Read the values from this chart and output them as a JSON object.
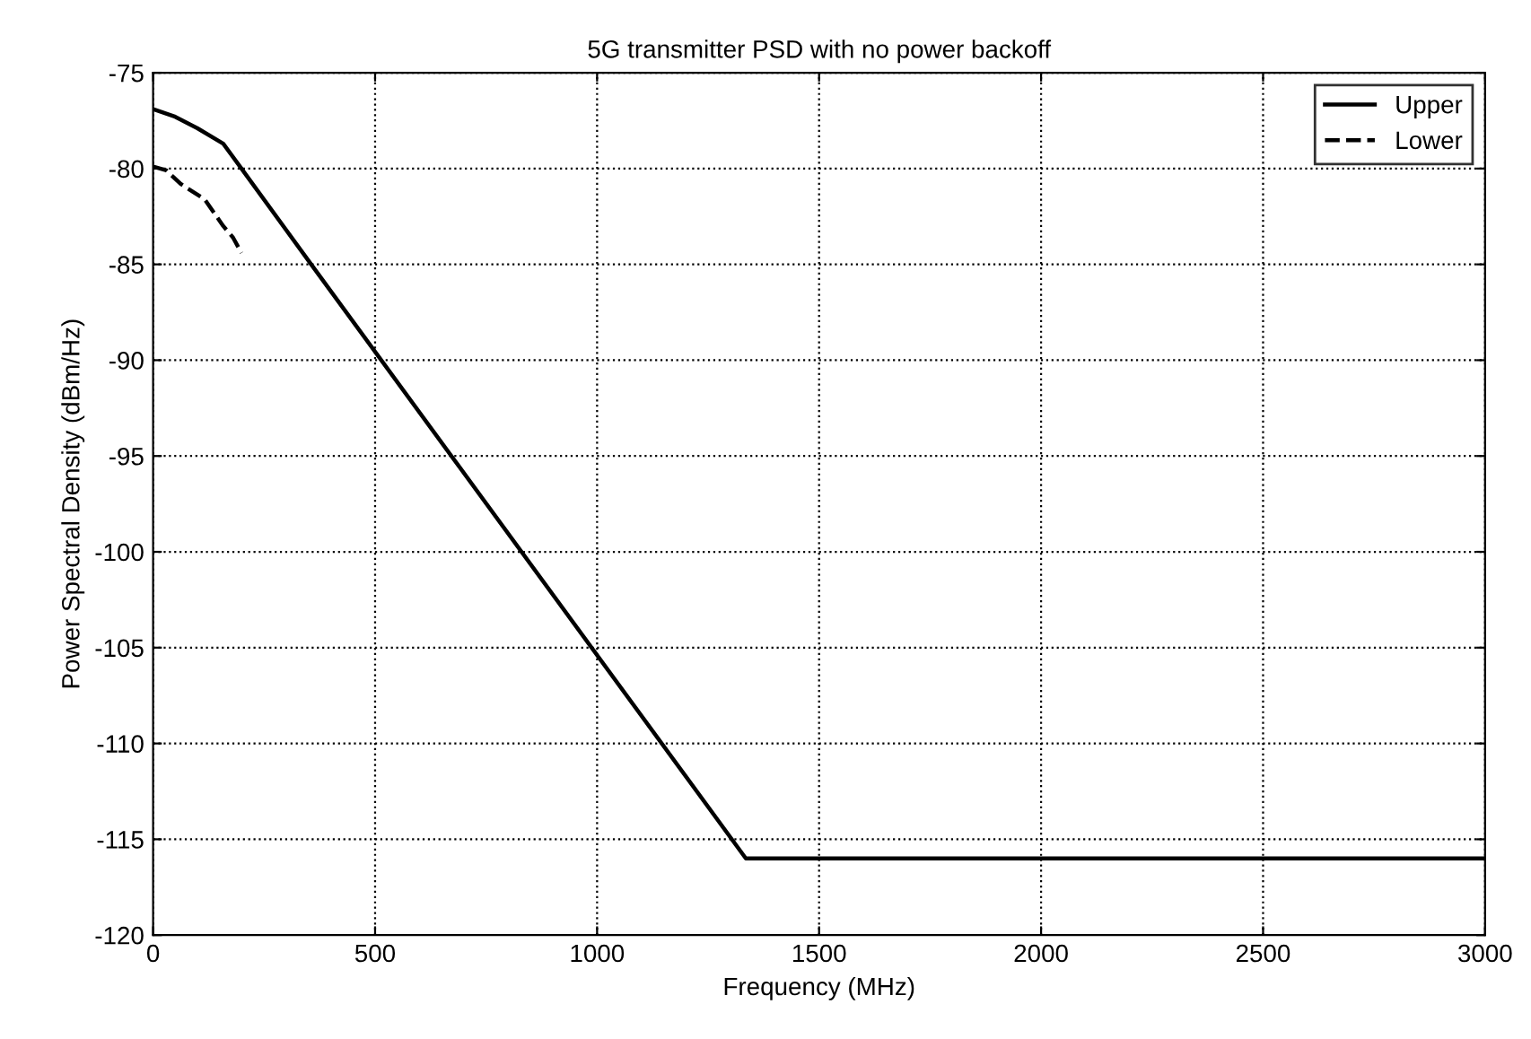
{
  "chart_data": {
    "type": "line",
    "title": "5G transmitter PSD with no power backoff",
    "xlabel": "Frequency (MHz)",
    "ylabel": "Power Spectral Density (dBm/Hz)",
    "series": [
      {
        "name": "Upper",
        "color": "#000000",
        "line_style": "solid",
        "x": [
          0,
          50,
          100,
          158,
          199,
          356,
          1335,
          3000
        ],
        "values": [
          -76.9,
          -77.3,
          -77.9,
          -78.7,
          -80,
          -85,
          -116,
          -116
        ]
      },
      {
        "name": "Lower",
        "color": "#000000",
        "line_style": "dashed",
        "x": [
          0,
          30,
          62,
          116,
          158,
          180,
          199
        ],
        "values": [
          -79.9,
          -80.1,
          -80.8,
          -81.6,
          -83,
          -83.6,
          -84.4
        ]
      }
    ],
    "xlim": [
      0,
      3000
    ],
    "xticks": [
      0,
      500,
      1000,
      1500,
      2000,
      2500,
      3000
    ],
    "ylim": [
      -120,
      -75
    ],
    "yticks": [
      -120,
      -115,
      -110,
      -105,
      -100,
      -95,
      -90,
      -85,
      -80,
      -75
    ],
    "grid": true,
    "legend": "top right",
    "marker": "none"
  }
}
